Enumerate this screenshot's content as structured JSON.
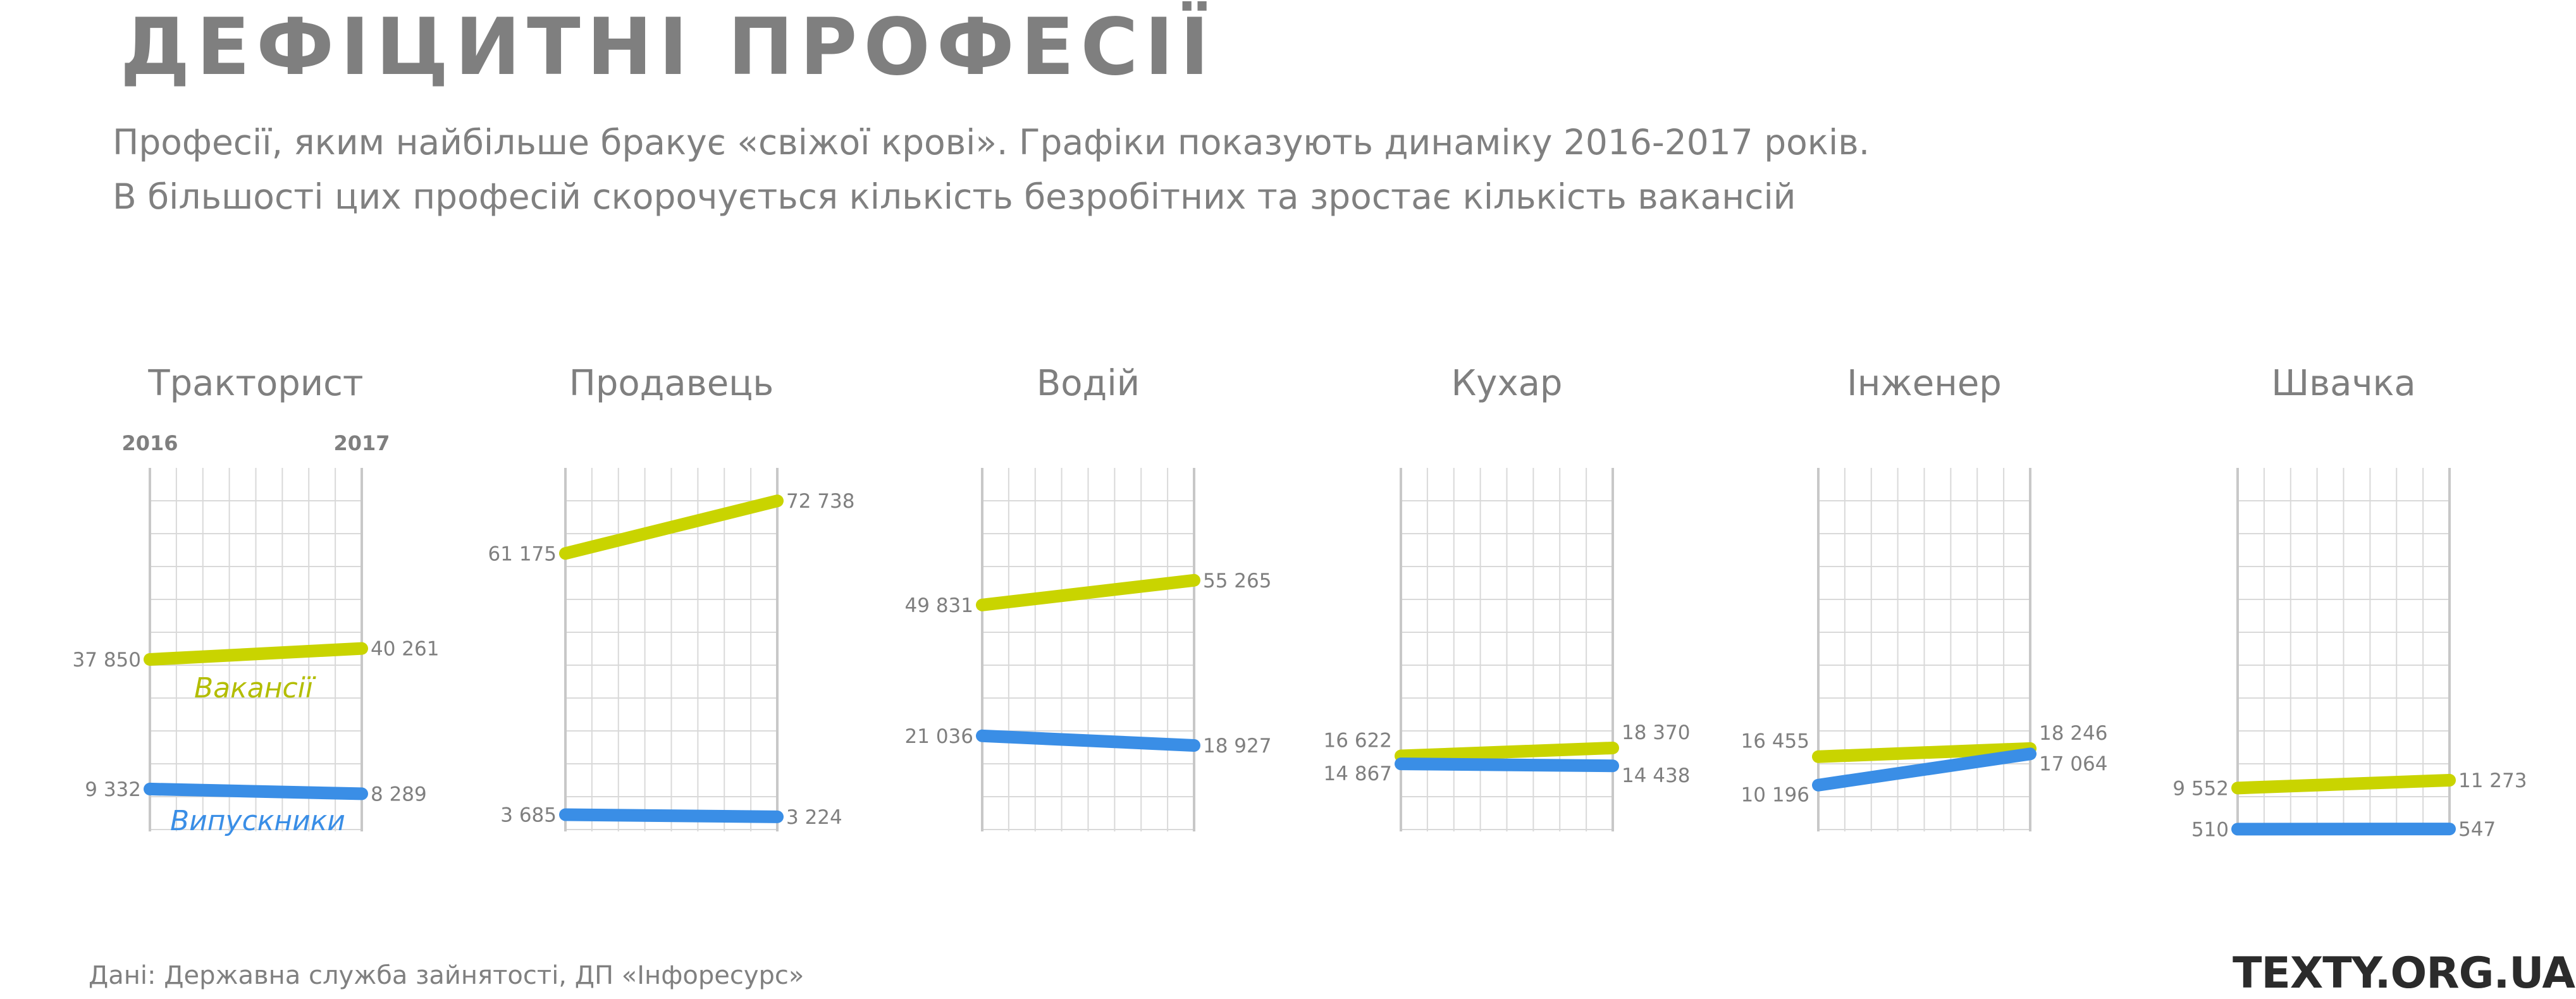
{
  "header": {
    "title": "ДЕФІЦИТНІ ПРОФЕСІЇ",
    "subtitle_line1": "Професії, яким найбільше бракує «свіжої крові». Графіки показують динаміку 2016-2017 років.",
    "subtitle_line2": "В більшості цих професій скорочується кількість безробітних та зростає кількість вакансій"
  },
  "footer": {
    "source": "Дані: Державна служба зайнятості, ДП «Інфоресурс»",
    "brand": "TEXTY.ORG.UA"
  },
  "colors": {
    "vacancies": "#c9d400",
    "graduates": "#3a8ee6",
    "grid": "#d9d9d9",
    "axis": "#c8c8c8",
    "text": "#7f7f7f"
  },
  "chart_data": {
    "type": "line",
    "x": [
      "2016",
      "2017"
    ],
    "x_labels_shown_on_first_panel": true,
    "series_labels": {
      "vacancies": "Вакансії",
      "graduates": "Випускники"
    },
    "grid": true,
    "panels": [
      {
        "title": "Тракторист",
        "series": [
          {
            "key": "vacancies",
            "values": [
              37850,
              40261
            ],
            "labels": [
              "37 850",
              "40 261"
            ]
          },
          {
            "key": "graduates",
            "values": [
              9332,
              8289
            ],
            "labels": [
              "9 332",
              "8 289"
            ]
          }
        ]
      },
      {
        "title": "Продавець",
        "series": [
          {
            "key": "vacancies",
            "values": [
              61175,
              72738
            ],
            "labels": [
              "61 175",
              "72 738"
            ]
          },
          {
            "key": "graduates",
            "values": [
              3685,
              3224
            ],
            "labels": [
              "3 685",
              "3 224"
            ]
          }
        ]
      },
      {
        "title": "Водій",
        "series": [
          {
            "key": "vacancies",
            "values": [
              49831,
              55265
            ],
            "labels": [
              "49 831",
              "55 265"
            ]
          },
          {
            "key": "graduates",
            "values": [
              21036,
              18927
            ],
            "labels": [
              "21 036",
              "18 927"
            ]
          }
        ]
      },
      {
        "title": "Кухар",
        "series": [
          {
            "key": "vacancies",
            "values": [
              16622,
              18370
            ],
            "labels": [
              "16 622",
              "18 370"
            ]
          },
          {
            "key": "graduates",
            "values": [
              14867,
              14438
            ],
            "labels": [
              "14 867",
              "14 438"
            ]
          }
        ]
      },
      {
        "title": "Інженер",
        "series": [
          {
            "key": "vacancies",
            "values": [
              16455,
              18246
            ],
            "labels": [
              "16 455",
              "18 246"
            ]
          },
          {
            "key": "graduates",
            "values": [
              10196,
              17064
            ],
            "labels": [
              "10 196",
              "17 064"
            ]
          }
        ]
      },
      {
        "title": "Швачка",
        "series": [
          {
            "key": "vacancies",
            "values": [
              9552,
              11273
            ],
            "labels": [
              "9 552",
              "11 273"
            ]
          },
          {
            "key": "graduates",
            "values": [
              510,
              547
            ],
            "labels": [
              "510",
              "547"
            ]
          }
        ]
      }
    ]
  }
}
